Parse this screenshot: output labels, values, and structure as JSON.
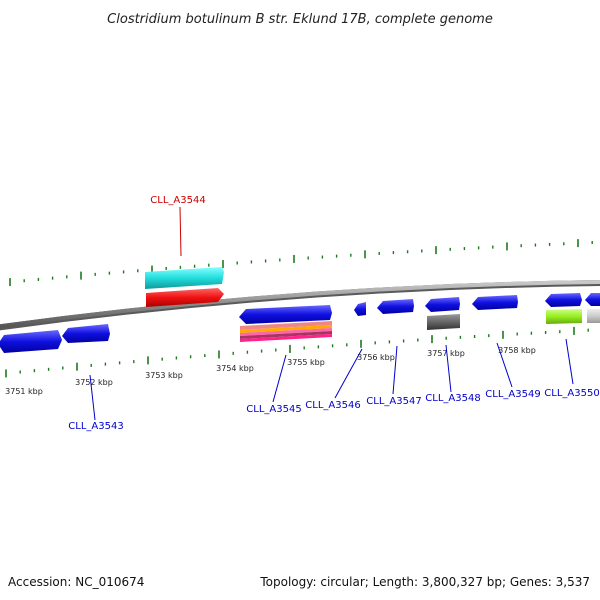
{
  "title": "Clostridium botulinum B str. Eklund 17B, complete genome",
  "footer": {
    "accession": "Accession: NC_010674",
    "info": "Topology: circular; Length: 3,800,327 bp; Genes: 3,537"
  },
  "ruler": {
    "unit": "kbp",
    "labels": [
      "3751 kbp",
      "3752 kbp",
      "3753 kbp",
      "3754 kbp",
      "3755 kbp",
      "3756 kbp",
      "3757 kbp",
      "3758 kbp"
    ]
  },
  "genes": [
    {
      "name": "CLL_A3544",
      "strand": "forward",
      "color": "#cc0000"
    },
    {
      "name": "CLL_A3543",
      "strand": "reverse",
      "color": "#0000cc"
    },
    {
      "name": "CLL_A3545",
      "strand": "reverse",
      "color": "#0000cc"
    },
    {
      "name": "CLL_A3546",
      "strand": "reverse",
      "color": "#0000cc"
    },
    {
      "name": "CLL_A3547",
      "strand": "reverse",
      "color": "#0000cc"
    },
    {
      "name": "CLL_A3548",
      "strand": "reverse",
      "color": "#0000cc"
    },
    {
      "name": "CLL_A3549",
      "strand": "reverse",
      "color": "#0000cc"
    },
    {
      "name": "CLL_A3550",
      "strand": "reverse",
      "color": "#0000cc"
    }
  ],
  "colors": {
    "backbone": "#8a8a8a",
    "ruler_ticks": "#1e7a1e",
    "gene_arrow": "#1010e0",
    "forward_gene": "#ee1111",
    "forward_band": "#22dddd",
    "reverse_gray": "#666666",
    "reverse_lime": "#99ee22",
    "reverse_light": "#cccccc"
  }
}
